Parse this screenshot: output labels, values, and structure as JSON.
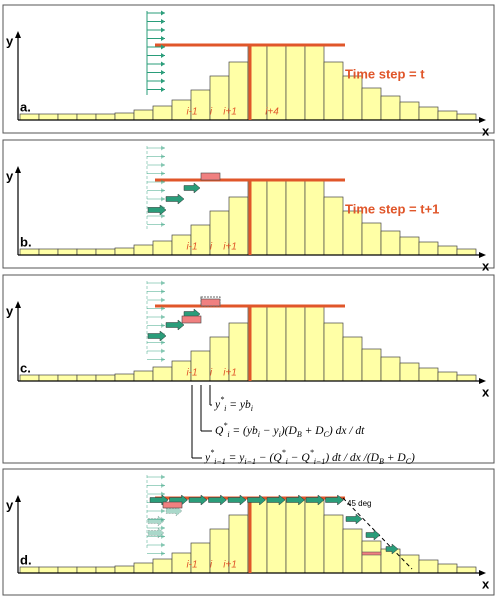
{
  "panels": [
    {
      "label": "a.",
      "y_axis": "y",
      "x_axis": "x",
      "indices": [
        "i-1",
        "i",
        "i+1",
        "i+4"
      ],
      "time_step": "Time step = t"
    },
    {
      "label": "b.",
      "y_axis": "y",
      "x_axis": "x",
      "indices": [
        "i-1",
        "i",
        "i+1"
      ],
      "time_step": "Time step = t+1"
    },
    {
      "label": "c.",
      "y_axis": "y",
      "x_axis": "x",
      "indices": [
        "i-1",
        "i",
        "i+1"
      ],
      "equations": [
        [
          {
            "text": "y"
          },
          {
            "sup": "*"
          },
          {
            "sub": "i"
          },
          {
            "text": " = yb"
          },
          {
            "sub": "i"
          }
        ],
        [
          {
            "text": "Q"
          },
          {
            "sup": "*"
          },
          {
            "sub": "i"
          },
          {
            "text": " = (yb"
          },
          {
            "sub": "i"
          },
          {
            "text": " − y"
          },
          {
            "sub": "i"
          },
          {
            "text": ")(D"
          },
          {
            "sub": "B"
          },
          {
            "text": " + D"
          },
          {
            "sub": "C"
          },
          {
            "text": ") dx / dt"
          }
        ],
        [
          {
            "text": "y"
          },
          {
            "sup": "*"
          },
          {
            "sub": "i−1"
          },
          {
            "text": " = y"
          },
          {
            "sub": "i−1"
          },
          {
            "text": " − (Q"
          },
          {
            "sup": "*"
          },
          {
            "sub": "i"
          },
          {
            "text": " − Q"
          },
          {
            "sup": "*"
          },
          {
            "sub": "i−1"
          },
          {
            "text": ") dt / dx /(D"
          },
          {
            "sub": "B"
          },
          {
            "text": " + D"
          },
          {
            "sub": "C"
          },
          {
            "text": ")"
          }
        ]
      ]
    },
    {
      "label": "d.",
      "y_axis": "y",
      "x_axis": "x",
      "indices": [
        "i-1",
        "i",
        "i+1"
      ],
      "annotation": "45 deg"
    }
  ]
}
